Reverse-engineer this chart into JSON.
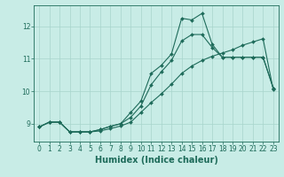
{
  "xlabel": "Humidex (Indice chaleur)",
  "background_color": "#c8ece6",
  "grid_color": "#a8d4cc",
  "line_color": "#1e6b5a",
  "spine_color": "#1e6b5a",
  "xlim": [
    -0.5,
    23.5
  ],
  "ylim": [
    8.45,
    12.65
  ],
  "xticks": [
    0,
    1,
    2,
    3,
    4,
    5,
    6,
    7,
    8,
    9,
    10,
    11,
    12,
    13,
    14,
    15,
    16,
    17,
    18,
    19,
    20,
    21,
    22,
    23
  ],
  "yticks": [
    9,
    10,
    11,
    12
  ],
  "line1_x": [
    0,
    1,
    2,
    3,
    4,
    5,
    6,
    7,
    8,
    9,
    10,
    11,
    12,
    13,
    14,
    15,
    16,
    17,
    18,
    19,
    20,
    21,
    22,
    23
  ],
  "line1_y": [
    8.9,
    9.05,
    9.05,
    8.75,
    8.75,
    8.75,
    8.82,
    8.92,
    9.0,
    9.35,
    9.7,
    10.55,
    10.8,
    11.15,
    12.25,
    12.2,
    12.4,
    11.45,
    11.05,
    11.05,
    11.05,
    11.05,
    11.05,
    10.1
  ],
  "line2_x": [
    0,
    1,
    2,
    3,
    4,
    5,
    6,
    7,
    8,
    9,
    10,
    11,
    12,
    13,
    14,
    15,
    16,
    17,
    18,
    19,
    20,
    21,
    22,
    23
  ],
  "line2_y": [
    8.9,
    9.05,
    9.05,
    8.75,
    8.75,
    8.75,
    8.82,
    8.92,
    9.0,
    9.2,
    9.55,
    10.2,
    10.6,
    10.95,
    11.55,
    11.75,
    11.75,
    11.35,
    11.05,
    11.05,
    11.05,
    11.05,
    11.05,
    10.1
  ],
  "line3_x": [
    0,
    1,
    2,
    3,
    4,
    5,
    6,
    7,
    8,
    9,
    10,
    11,
    12,
    13,
    14,
    15,
    16,
    17,
    18,
    19,
    20,
    21,
    22,
    23
  ],
  "line3_y": [
    8.9,
    9.05,
    9.05,
    8.75,
    8.75,
    8.75,
    8.78,
    8.85,
    8.93,
    9.05,
    9.35,
    9.65,
    9.92,
    10.22,
    10.55,
    10.78,
    10.95,
    11.08,
    11.18,
    11.28,
    11.42,
    11.52,
    11.62,
    10.05
  ],
  "marker": "D",
  "markersize": 2.0,
  "linewidth": 0.8,
  "tick_fontsize": 5.5,
  "label_fontsize": 7.0
}
